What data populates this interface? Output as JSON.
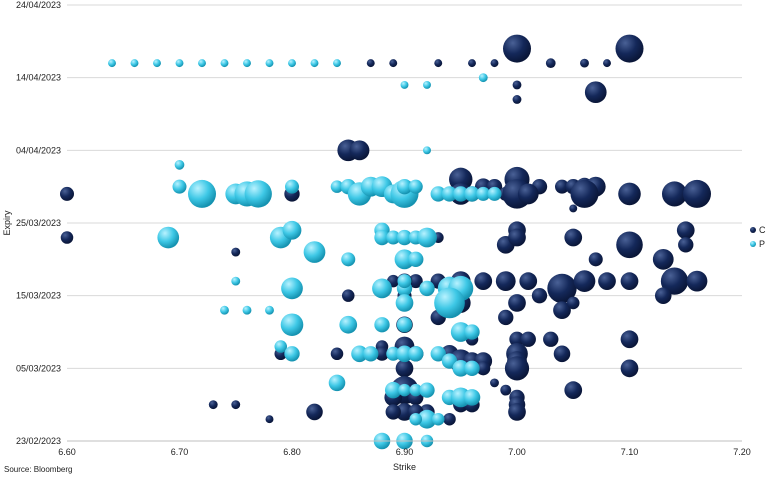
{
  "chart_data": {
    "type": "scatter",
    "subtype": "bubble",
    "xlabel": "Strike",
    "ylabel": "Expiry",
    "source": "Source: Bloomberg",
    "x_ticks": [
      "6.60",
      "6.70",
      "6.80",
      "6.90",
      "7.00",
      "7.10",
      "7.20"
    ],
    "x_tick_values": [
      6.6,
      6.7,
      6.8,
      6.9,
      7.0,
      7.1,
      7.2
    ],
    "y_ticks": [
      "23/02/2023",
      "05/03/2023",
      "15/03/2023",
      "25/03/2023",
      "04/04/2023",
      "14/04/2023",
      "24/04/2023"
    ],
    "y_tick_values": [
      0,
      10,
      20,
      30,
      40,
      50,
      60
    ],
    "xlim": [
      6.6,
      7.2
    ],
    "ylim": [
      0,
      60
    ],
    "grid": "horizontal",
    "legend_position": "right",
    "colors": {
      "C": "#14285a",
      "P": "#3ec8e6"
    },
    "series": [
      {
        "name": "C",
        "points": [
          [
            7.0,
            54,
            1.0
          ],
          [
            7.1,
            54,
            1.0
          ],
          [
            6.87,
            52,
            0.08
          ],
          [
            6.89,
            52,
            0.08
          ],
          [
            6.93,
            52,
            0.08
          ],
          [
            6.96,
            52,
            0.08
          ],
          [
            6.98,
            52,
            0.08
          ],
          [
            7.03,
            52,
            0.12
          ],
          [
            7.06,
            52,
            0.1
          ],
          [
            7.08,
            52,
            0.08
          ],
          [
            7.0,
            49,
            0.1
          ],
          [
            7.07,
            48,
            0.6
          ],
          [
            7.0,
            47,
            0.1
          ],
          [
            6.85,
            40,
            0.6
          ],
          [
            6.86,
            40,
            0.5
          ],
          [
            6.6,
            34,
            0.25
          ],
          [
            6.8,
            34,
            0.3
          ],
          [
            6.95,
            36,
            0.7
          ],
          [
            6.97,
            35,
            0.35
          ],
          [
            6.98,
            35,
            0.3
          ],
          [
            7.0,
            36,
            0.8
          ],
          [
            7.02,
            35,
            0.3
          ],
          [
            7.04,
            35,
            0.25
          ],
          [
            7.05,
            35,
            0.3
          ],
          [
            7.06,
            35,
            0.4
          ],
          [
            7.07,
            35,
            0.5
          ],
          [
            6.95,
            34,
            0.6
          ],
          [
            6.96,
            34,
            0.3
          ],
          [
            6.99,
            34,
            0.25
          ],
          [
            7.0,
            34,
            1.1
          ],
          [
            7.01,
            34,
            0.55
          ],
          [
            7.06,
            34,
            1.0
          ],
          [
            7.1,
            34,
            0.65
          ],
          [
            7.14,
            34,
            0.8
          ],
          [
            7.16,
            34,
            1.0
          ],
          [
            7.05,
            32,
            0.08
          ],
          [
            6.6,
            28,
            0.2
          ],
          [
            6.93,
            28,
            0.15
          ],
          [
            6.99,
            27,
            0.4
          ],
          [
            7.0,
            29,
            0.4
          ],
          [
            7.0,
            28,
            0.4
          ],
          [
            7.05,
            28,
            0.4
          ],
          [
            7.1,
            27,
            0.9
          ],
          [
            7.15,
            29,
            0.4
          ],
          [
            7.15,
            27,
            0.3
          ],
          [
            7.13,
            25,
            0.55
          ],
          [
            7.07,
            25,
            0.25
          ],
          [
            6.75,
            26,
            0.1
          ],
          [
            6.93,
            22,
            0.3
          ],
          [
            6.95,
            22,
            0.5
          ],
          [
            6.97,
            22,
            0.4
          ],
          [
            6.99,
            22,
            0.5
          ],
          [
            7.01,
            22,
            0.4
          ],
          [
            7.04,
            21,
            1.1
          ],
          [
            7.06,
            22,
            0.6
          ],
          [
            7.08,
            22,
            0.4
          ],
          [
            7.1,
            22,
            0.4
          ],
          [
            7.14,
            22,
            0.95
          ],
          [
            7.16,
            22,
            0.55
          ],
          [
            7.13,
            20,
            0.35
          ],
          [
            6.89,
            22,
            0.2
          ],
          [
            6.91,
            22,
            0.25
          ],
          [
            6.9,
            22,
            0.3
          ],
          [
            6.85,
            20,
            0.2
          ],
          [
            6.9,
            20,
            0.25
          ],
          [
            6.95,
            19,
            0.5
          ],
          [
            7.0,
            19,
            0.4
          ],
          [
            7.02,
            20,
            0.3
          ],
          [
            7.04,
            18,
            0.4
          ],
          [
            7.05,
            19,
            0.2
          ],
          [
            6.9,
            16,
            0.35
          ],
          [
            6.88,
            16,
            0.2
          ],
          [
            6.93,
            17,
            0.3
          ],
          [
            6.99,
            17,
            0.3
          ],
          [
            7.0,
            14,
            0.3
          ],
          [
            7.01,
            14,
            0.3
          ],
          [
            7.03,
            14,
            0.3
          ],
          [
            6.96,
            14,
            0.2
          ],
          [
            7.1,
            14,
            0.4
          ],
          [
            6.9,
            13,
            0.5
          ],
          [
            6.88,
            13,
            0.2
          ],
          [
            6.79,
            12,
            0.2
          ],
          [
            6.84,
            12,
            0.2
          ],
          [
            6.88,
            12,
            0.25
          ],
          [
            6.91,
            12,
            0.3
          ],
          [
            6.94,
            12,
            0.4
          ],
          [
            6.95,
            11,
            0.7
          ],
          [
            6.96,
            11,
            0.4
          ],
          [
            6.97,
            11,
            0.4
          ],
          [
            7.0,
            12,
            0.6
          ],
          [
            7.0,
            11,
            0.5
          ],
          [
            7.04,
            12,
            0.35
          ],
          [
            6.9,
            10,
            0.4
          ],
          [
            6.96,
            10,
            0.25
          ],
          [
            6.97,
            10,
            0.25
          ],
          [
            7.0,
            10,
            0.75
          ],
          [
            7.1,
            10,
            0.4
          ],
          [
            6.98,
            8,
            0.1
          ],
          [
            6.99,
            7,
            0.15
          ],
          [
            7.05,
            7,
            0.4
          ],
          [
            6.9,
            7,
            1.0
          ],
          [
            6.89,
            6,
            0.4
          ],
          [
            6.91,
            6,
            0.3
          ],
          [
            6.9,
            4,
            0.4
          ],
          [
            6.92,
            4,
            0.3
          ],
          [
            6.95,
            5,
            0.3
          ],
          [
            6.96,
            5,
            0.3
          ],
          [
            7.0,
            6,
            0.3
          ],
          [
            7.0,
            5,
            0.35
          ],
          [
            7.0,
            4,
            0.4
          ],
          [
            6.73,
            5,
            0.1
          ],
          [
            6.75,
            5,
            0.1
          ],
          [
            6.78,
            3,
            0.08
          ],
          [
            6.82,
            4,
            0.35
          ],
          [
            6.89,
            4,
            0.3
          ],
          [
            6.91,
            4,
            0.3
          ],
          [
            6.94,
            3,
            0.2
          ]
        ]
      },
      {
        "name": "P",
        "points": [
          [
            6.64,
            52,
            0.08
          ],
          [
            6.66,
            52,
            0.08
          ],
          [
            6.68,
            52,
            0.08
          ],
          [
            6.7,
            52,
            0.08
          ],
          [
            6.72,
            52,
            0.08
          ],
          [
            6.74,
            52,
            0.08
          ],
          [
            6.76,
            52,
            0.08
          ],
          [
            6.78,
            52,
            0.08
          ],
          [
            6.8,
            52,
            0.08
          ],
          [
            6.82,
            52,
            0.08
          ],
          [
            6.84,
            52,
            0.08
          ],
          [
            6.9,
            49,
            0.08
          ],
          [
            6.97,
            50,
            0.1
          ],
          [
            6.92,
            49,
            0.08
          ],
          [
            6.7,
            38,
            0.12
          ],
          [
            6.92,
            40,
            0.08
          ],
          [
            6.7,
            35,
            0.25
          ],
          [
            6.72,
            34,
            1.0
          ],
          [
            6.75,
            34,
            0.55
          ],
          [
            6.76,
            34,
            0.8
          ],
          [
            6.77,
            34,
            0.95
          ],
          [
            6.8,
            35,
            0.25
          ],
          [
            6.84,
            35,
            0.2
          ],
          [
            6.85,
            35,
            0.3
          ],
          [
            6.86,
            34,
            0.7
          ],
          [
            6.87,
            35,
            0.5
          ],
          [
            6.88,
            35,
            0.55
          ],
          [
            6.89,
            34,
            0.45
          ],
          [
            6.9,
            34,
            1.0
          ],
          [
            6.9,
            35,
            0.3
          ],
          [
            6.91,
            35,
            0.25
          ],
          [
            6.93,
            34,
            0.3
          ],
          [
            6.94,
            34,
            0.3
          ],
          [
            6.95,
            34,
            0.3
          ],
          [
            6.96,
            34,
            0.3
          ],
          [
            6.97,
            34,
            0.25
          ],
          [
            6.98,
            34,
            0.25
          ],
          [
            6.69,
            28,
            0.6
          ],
          [
            6.79,
            28,
            0.6
          ],
          [
            6.8,
            29,
            0.45
          ],
          [
            6.88,
            29,
            0.3
          ],
          [
            6.88,
            28,
            0.3
          ],
          [
            6.89,
            28,
            0.25
          ],
          [
            6.9,
            28,
            0.3
          ],
          [
            6.91,
            28,
            0.25
          ],
          [
            6.92,
            28,
            0.5
          ],
          [
            6.82,
            26,
            0.6
          ],
          [
            6.85,
            25,
            0.25
          ],
          [
            6.9,
            25,
            0.5
          ],
          [
            6.91,
            25,
            0.3
          ],
          [
            6.75,
            22,
            0.1
          ],
          [
            6.8,
            21,
            0.6
          ],
          [
            6.88,
            21,
            0.5
          ],
          [
            6.9,
            21,
            0.3
          ],
          [
            6.9,
            22,
            0.25
          ],
          [
            6.92,
            21,
            0.3
          ],
          [
            6.94,
            21,
            0.7
          ],
          [
            6.95,
            21,
            0.8
          ],
          [
            6.94,
            19,
            1.2
          ],
          [
            6.9,
            19,
            0.4
          ],
          [
            6.74,
            18,
            0.1
          ],
          [
            6.76,
            18,
            0.1
          ],
          [
            6.78,
            18,
            0.1
          ],
          [
            6.8,
            16,
            0.65
          ],
          [
            6.85,
            16,
            0.4
          ],
          [
            6.88,
            16,
            0.3
          ],
          [
            6.9,
            16,
            0.3
          ],
          [
            6.95,
            15,
            0.5
          ],
          [
            6.96,
            15,
            0.3
          ],
          [
            6.79,
            13,
            0.2
          ],
          [
            6.8,
            12,
            0.3
          ],
          [
            6.86,
            12,
            0.35
          ],
          [
            6.87,
            12,
            0.3
          ],
          [
            6.89,
            12,
            0.25
          ],
          [
            6.9,
            12,
            0.35
          ],
          [
            6.91,
            12,
            0.3
          ],
          [
            6.93,
            12,
            0.3
          ],
          [
            6.94,
            11,
            0.3
          ],
          [
            6.95,
            10,
            0.35
          ],
          [
            6.96,
            10,
            0.3
          ],
          [
            6.84,
            8,
            0.35
          ],
          [
            6.89,
            7,
            0.35
          ],
          [
            6.9,
            7,
            0.2
          ],
          [
            6.91,
            7,
            0.2
          ],
          [
            6.92,
            7,
            0.3
          ],
          [
            6.94,
            6,
            0.3
          ],
          [
            6.95,
            6,
            0.5
          ],
          [
            6.96,
            6,
            0.35
          ],
          [
            6.92,
            3,
            0.45
          ],
          [
            6.91,
            3,
            0.2
          ],
          [
            6.93,
            3,
            0.2
          ],
          [
            6.88,
            0,
            0.35
          ],
          [
            6.9,
            0,
            0.35
          ],
          [
            6.92,
            0,
            0.2
          ]
        ]
      }
    ]
  }
}
